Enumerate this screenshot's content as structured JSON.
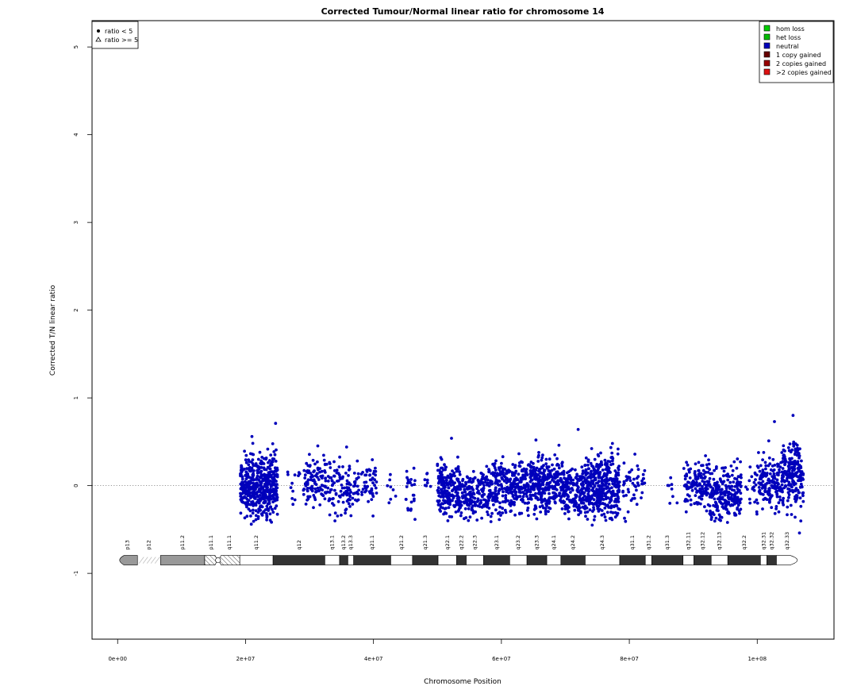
{
  "chart_data": {
    "type": "scatter",
    "title": "Corrected Tumour/Normal linear ratio for chromosome  14",
    "xlabel": "Chromosome Position",
    "ylabel": "Corrected T/N linear ratio",
    "xlim": [
      -4000000,
      112000000
    ],
    "ylim": [
      -1.75,
      5.3
    ],
    "x_ticks": [
      {
        "value": 0,
        "label": "0e+00"
      },
      {
        "value": 20000000,
        "label": "2e+07"
      },
      {
        "value": 40000000,
        "label": "4e+07"
      },
      {
        "value": 60000000,
        "label": "6e+07"
      },
      {
        "value": 80000000,
        "label": "8e+07"
      },
      {
        "value": 100000000,
        "label": "1e+08"
      }
    ],
    "y_ticks": [
      {
        "value": -1,
        "label": "-1"
      },
      {
        "value": 0,
        "label": "0"
      },
      {
        "value": 1,
        "label": "1"
      },
      {
        "value": 2,
        "label": "2"
      },
      {
        "value": 3,
        "label": "3"
      },
      {
        "value": 4,
        "label": "4"
      },
      {
        "value": 5,
        "label": "5"
      }
    ],
    "reference_line": {
      "y": 0,
      "style": "dotted"
    },
    "legend_markers": {
      "placement": "top-left",
      "entries": [
        {
          "label": "ratio < 5",
          "marker": "filled-circle"
        },
        {
          "label": "ratio >= 5",
          "marker": "open-triangle"
        }
      ]
    },
    "legend_states": {
      "placement": "top-right",
      "entries": [
        {
          "label": "hom loss",
          "color": "#00cc00"
        },
        {
          "label": "het loss",
          "color": "#00bb00"
        },
        {
          "label": "neutral",
          "color": "#0000bb"
        },
        {
          "label": "1 copy gained",
          "color": "#660000"
        },
        {
          "label": "2 copies gained",
          "color": "#990000"
        },
        {
          "label": ">2 copies gained",
          "color": "#dd1111"
        }
      ]
    },
    "point_color": "#0000bb",
    "series": [
      {
        "name": "neutral",
        "clusters": [
          {
            "x": [
              19200000,
              25000000
            ],
            "y_mean": 0.0,
            "y_sd": 0.17,
            "count": 520
          },
          {
            "x": [
              26500000,
              28500000
            ],
            "y_mean": 0.0,
            "y_sd": 0.12,
            "count": 12
          },
          {
            "x": [
              29000000,
              33000000
            ],
            "y_mean": 0.07,
            "y_sd": 0.13,
            "count": 110
          },
          {
            "x": [
              33000000,
              36500000
            ],
            "y_mean": -0.02,
            "y_sd": 0.14,
            "count": 90
          },
          {
            "x": [
              36500000,
              40500000
            ],
            "y_mean": -0.02,
            "y_sd": 0.13,
            "count": 70
          },
          {
            "x": [
              42000000,
              43500000
            ],
            "y_mean": -0.05,
            "y_sd": 0.13,
            "count": 8
          },
          {
            "x": [
              45000000,
              46500000
            ],
            "y_mean": -0.05,
            "y_sd": 0.13,
            "count": 25
          },
          {
            "x": [
              47500000,
              49000000
            ],
            "y_mean": 0.05,
            "y_sd": 0.1,
            "count": 8
          },
          {
            "x": [
              50000000,
              53500000
            ],
            "y_mean": -0.02,
            "y_sd": 0.15,
            "count": 200
          },
          {
            "x": [
              53500000,
              56000000
            ],
            "y_mean": -0.1,
            "y_sd": 0.13,
            "count": 110
          },
          {
            "x": [
              56000000,
              58500000
            ],
            "y_mean": -0.08,
            "y_sd": 0.14,
            "count": 90
          },
          {
            "x": [
              58500000,
              62000000
            ],
            "y_mean": -0.02,
            "y_sd": 0.15,
            "count": 160
          },
          {
            "x": [
              62000000,
              64500000
            ],
            "y_mean": 0.0,
            "y_sd": 0.15,
            "count": 110
          },
          {
            "x": [
              64500000,
              67500000
            ],
            "y_mean": 0.03,
            "y_sd": 0.16,
            "count": 210
          },
          {
            "x": [
              67500000,
              69500000
            ],
            "y_mean": 0.03,
            "y_sd": 0.15,
            "count": 100
          },
          {
            "x": [
              69500000,
              73000000
            ],
            "y_mean": -0.05,
            "y_sd": 0.14,
            "count": 170
          },
          {
            "x": [
              73000000,
              78500000
            ],
            "y_mean": -0.02,
            "y_sd": 0.17,
            "count": 380
          },
          {
            "x": [
              79000000,
              82500000
            ],
            "y_mean": 0.02,
            "y_sd": 0.14,
            "count": 50
          },
          {
            "x": [
              85500000,
              87500000
            ],
            "y_mean": -0.05,
            "y_sd": 0.12,
            "count": 8
          },
          {
            "x": [
              88500000,
              92500000
            ],
            "y_mean": 0.0,
            "y_sd": 0.14,
            "count": 140
          },
          {
            "x": [
              92500000,
              97500000
            ],
            "y_mean": -0.08,
            "y_sd": 0.14,
            "count": 230
          },
          {
            "x": [
              98000000,
              99500000
            ],
            "y_mean": 0.0,
            "y_sd": 0.1,
            "count": 10
          },
          {
            "x": [
              99500000,
              104000000
            ],
            "y_mean": 0.02,
            "y_sd": 0.15,
            "count": 170
          },
          {
            "x": [
              104000000,
              107200000
            ],
            "y_mean": 0.12,
            "y_sd": 0.2,
            "count": 200
          }
        ],
        "notable_points": [
          {
            "x": 24700000,
            "y": 0.71
          },
          {
            "x": 21000000,
            "y": 0.56
          },
          {
            "x": 20900000,
            "y": -0.44
          },
          {
            "x": 35800000,
            "y": 0.44
          },
          {
            "x": 52200000,
            "y": 0.54
          },
          {
            "x": 65400000,
            "y": 0.52
          },
          {
            "x": 72000000,
            "y": 0.64
          },
          {
            "x": 74200000,
            "y": -0.45
          },
          {
            "x": 101800000,
            "y": 0.51
          },
          {
            "x": 102700000,
            "y": 0.73
          },
          {
            "x": 105600000,
            "y": 0.8
          },
          {
            "x": 106600000,
            "y": -0.54
          }
        ]
      }
    ],
    "ideogram": {
      "y": -0.85,
      "centromere_x": 15700000,
      "bands": [
        {
          "name": "p13",
          "start": 0,
          "end": 3100000,
          "stain": "gvar"
        },
        {
          "name": "p12",
          "start": 3100000,
          "end": 6700000,
          "stain": "stalk"
        },
        {
          "name": "p11.2",
          "start": 6700000,
          "end": 13600000,
          "stain": "gvar"
        },
        {
          "name": "p11.1",
          "start": 13600000,
          "end": 15600000,
          "stain": "acen"
        },
        {
          "name": "q11.1",
          "start": 15800000,
          "end": 19100000,
          "stain": "acen"
        },
        {
          "name": "q11.2",
          "start": 19100000,
          "end": 24300000,
          "stain": "gneg"
        },
        {
          "name": "q12",
          "start": 24300000,
          "end": 32400000,
          "stain": "gpos100"
        },
        {
          "name": "q13.1",
          "start": 32400000,
          "end": 34700000,
          "stain": "gneg"
        },
        {
          "name": "q13.2",
          "start": 34700000,
          "end": 36000000,
          "stain": "gpos100"
        },
        {
          "name": "q13.3",
          "start": 36000000,
          "end": 36900000,
          "stain": "gneg"
        },
        {
          "name": "q21.1",
          "start": 36900000,
          "end": 42700000,
          "stain": "gpos100"
        },
        {
          "name": "q21.2",
          "start": 42700000,
          "end": 46100000,
          "stain": "gneg"
        },
        {
          "name": "q21.3",
          "start": 46100000,
          "end": 50100000,
          "stain": "gpos100"
        },
        {
          "name": "q22.1",
          "start": 50100000,
          "end": 53000000,
          "stain": "gneg"
        },
        {
          "name": "q22.2",
          "start": 53000000,
          "end": 54500000,
          "stain": "gpos100"
        },
        {
          "name": "q22.3",
          "start": 54500000,
          "end": 57200000,
          "stain": "gneg"
        },
        {
          "name": "q23.1",
          "start": 57200000,
          "end": 61300000,
          "stain": "gpos100"
        },
        {
          "name": "q23.2",
          "start": 61300000,
          "end": 64000000,
          "stain": "gneg"
        },
        {
          "name": "q23.3",
          "start": 64000000,
          "end": 67100000,
          "stain": "gpos100"
        },
        {
          "name": "q24.1",
          "start": 67100000,
          "end": 69300000,
          "stain": "gneg"
        },
        {
          "name": "q24.2",
          "start": 69300000,
          "end": 73100000,
          "stain": "gpos100"
        },
        {
          "name": "q24.3",
          "start": 73100000,
          "end": 78500000,
          "stain": "gneg"
        },
        {
          "name": "q31.1",
          "start": 78500000,
          "end": 82500000,
          "stain": "gpos100"
        },
        {
          "name": "q31.2",
          "start": 82500000,
          "end": 83500000,
          "stain": "gneg"
        },
        {
          "name": "q31.3",
          "start": 83500000,
          "end": 88400000,
          "stain": "gpos100"
        },
        {
          "name": "q32.11",
          "start": 88400000,
          "end": 90100000,
          "stain": "gneg"
        },
        {
          "name": "q32.12",
          "start": 90100000,
          "end": 92800000,
          "stain": "gpos100"
        },
        {
          "name": "q32.13",
          "start": 92800000,
          "end": 95400000,
          "stain": "gneg"
        },
        {
          "name": "q32.2",
          "start": 95400000,
          "end": 100500000,
          "stain": "gpos100"
        },
        {
          "name": "q32.31",
          "start": 100500000,
          "end": 101500000,
          "stain": "gneg"
        },
        {
          "name": "q32.32",
          "start": 101500000,
          "end": 103000000,
          "stain": "gpos100"
        },
        {
          "name": "q32.33",
          "start": 103000000,
          "end": 106400000,
          "stain": "gneg"
        }
      ]
    }
  }
}
